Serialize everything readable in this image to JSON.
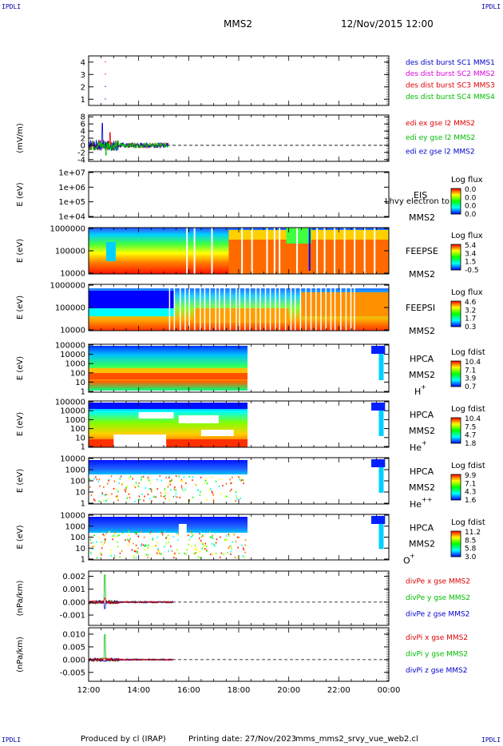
{
  "corners": {
    "tl": "IPDLI",
    "tr": "IPDLI",
    "bl": "IPDLI",
    "br": "IPDLI"
  },
  "header": {
    "spacecraft": "MMS2",
    "datetime": "12/Nov/2015 12:00"
  },
  "footer": {
    "credit": "Produced by cl (IRAP)",
    "printing": "Printing date: 27/Nov/2023",
    "file": "mms_mms2_srvy_vue_web2.cl"
  },
  "colors": {
    "red": "#dd0000",
    "magenta": "#dd00dd",
    "blue": "#0000cc",
    "green": "#00bb00",
    "black": "#000000"
  },
  "chart_data": {
    "type": "multi-panel time series",
    "x_axis": {
      "ticks": [
        "12:00",
        "14:00",
        "16:00",
        "18:00",
        "20:00",
        "22:00",
        "00:00"
      ],
      "range_hours": [
        12,
        24
      ]
    },
    "panels": [
      {
        "id": "burst",
        "type": "scatter",
        "ylabel": "",
        "ylim": [
          0.5,
          4.5
        ],
        "ticks": [
          "1",
          "2",
          "3",
          "4"
        ],
        "legend": [
          {
            "text": "des dist burst SC1 MMS1",
            "color": "#0000cc"
          },
          {
            "text": "des dist burst SC2 MMS2",
            "color": "#dd00dd"
          },
          {
            "text": "des dist burst SC3 MMS3",
            "color": "#dd0000"
          },
          {
            "text": "des dist burst SC4 MMS4",
            "color": "#00bb00"
          }
        ],
        "points": [
          {
            "t": 12.65,
            "y": 4,
            "color": "#dd0000"
          },
          {
            "t": 12.65,
            "y": 3,
            "color": "#dd0000"
          },
          {
            "t": 12.65,
            "y": 2,
            "color": "#0000cc"
          },
          {
            "t": 12.65,
            "y": 1,
            "color": "#0000cc"
          }
        ]
      },
      {
        "id": "edi",
        "type": "line",
        "ylabel": "(mV/m)",
        "ylim": [
          -4.5,
          8.5
        ],
        "ticks": [
          "8",
          "6",
          "4",
          "2",
          "0",
          "-2",
          "-4"
        ],
        "legend": [
          {
            "text": "edi ex gse l2 MMS2",
            "color": "#dd0000"
          },
          {
            "text": "edi ey gse l2 MMS2",
            "color": "#00bb00"
          },
          {
            "text": "edi ez gse l2 MMS2",
            "color": "#0000cc"
          }
        ]
      },
      {
        "id": "eis",
        "type": "spectrogram",
        "ylabel": "E (eV)",
        "ticks": [
          "1e+07",
          "1e+06",
          "1e+05",
          "1e+04"
        ],
        "labels": [
          "EIS",
          "MMS2"
        ],
        "overlay": "Lhvy electron to",
        "cb_title": "Log flux",
        "cb_vals": [
          "0.0",
          "0.0",
          "0.0",
          "0.0"
        ]
      },
      {
        "id": "feepse",
        "type": "spectrogram",
        "ylabel": "E (eV)",
        "ticks": [
          "1000000",
          "100000",
          "10000"
        ],
        "labels": [
          "FEEPSE",
          "MMS2"
        ],
        "cb_title": "Log flux",
        "cb_vals": [
          "5.4",
          "3.4",
          "1.5",
          "-0.5"
        ]
      },
      {
        "id": "feepsi",
        "type": "spectrogram",
        "ylabel": "E (eV)",
        "ticks": [
          "1000000",
          "100000",
          "10000"
        ],
        "labels": [
          "FEEPSI",
          "MMS2"
        ],
        "cb_title": "Log flux",
        "cb_vals": [
          "4.6",
          "3.2",
          "1.7",
          "0.3"
        ]
      },
      {
        "id": "hpca_h",
        "type": "spectrogram",
        "ylabel": "E (eV)",
        "ticks": [
          "100000",
          "10000",
          "1000",
          "100",
          "10",
          "1"
        ],
        "labels": [
          "HPCA",
          "MMS2"
        ],
        "species": "H",
        "charge": "+",
        "cb_title": "Log fdist",
        "cb_vals": [
          "10.4",
          "7.1",
          "3.9",
          "0.7"
        ]
      },
      {
        "id": "hpca_he",
        "type": "spectrogram",
        "ylabel": "E (eV)",
        "ticks": [
          "100000",
          "10000",
          "1000",
          "100",
          "10",
          "1"
        ],
        "labels": [
          "HPCA",
          "MMS2"
        ],
        "species": "He",
        "charge": "+",
        "cb_title": "Log fdist",
        "cb_vals": [
          "10.4",
          "7.5",
          "4.7",
          "1.8"
        ]
      },
      {
        "id": "hpca_hepp",
        "type": "spectrogram",
        "ylabel": "E (eV)",
        "ticks": [
          "10000",
          "1000",
          "100",
          "10",
          "1"
        ],
        "labels": [
          "HPCA",
          "MMS2"
        ],
        "species": "He",
        "charge": "++",
        "cb_title": "Log fdist",
        "cb_vals": [
          "9.9",
          "7.1",
          "4.3",
          "1.6"
        ]
      },
      {
        "id": "hpca_o",
        "type": "spectrogram",
        "ylabel": "E (eV)",
        "ticks": [
          "10000",
          "1000",
          "100",
          "10",
          "1"
        ],
        "labels": [
          "HPCA",
          "MMS2"
        ],
        "species": "O",
        "charge": "+",
        "cb_title": "Log fdist",
        "cb_vals": [
          "11.2",
          "8.5",
          "5.8",
          "3.0"
        ]
      },
      {
        "id": "divpe",
        "type": "line",
        "ylabel": "(nPa/km)",
        "ylim": [
          -0.0018,
          0.0024
        ],
        "ticks": [
          "0.002",
          "0.001",
          "0.000",
          "-0.001"
        ],
        "legend": [
          {
            "text": "divPe x gse MMS2",
            "color": "#dd0000"
          },
          {
            "text": "divPe y gse MMS2",
            "color": "#00bb00"
          },
          {
            "text": "divPe z gse MMS2",
            "color": "#0000cc"
          }
        ]
      },
      {
        "id": "divpi",
        "type": "line",
        "ylabel": "(nPa/km)",
        "ylim": [
          -0.0085,
          0.0125
        ],
        "ticks": [
          "0.010",
          "0.005",
          "0.000",
          "-0.005"
        ],
        "legend": [
          {
            "text": "divPi x gse MMS2",
            "color": "#dd0000"
          },
          {
            "text": "divPi y gse MMS2",
            "color": "#00bb00"
          },
          {
            "text": "divPi z gse MMS2",
            "color": "#0000cc"
          }
        ]
      }
    ]
  }
}
